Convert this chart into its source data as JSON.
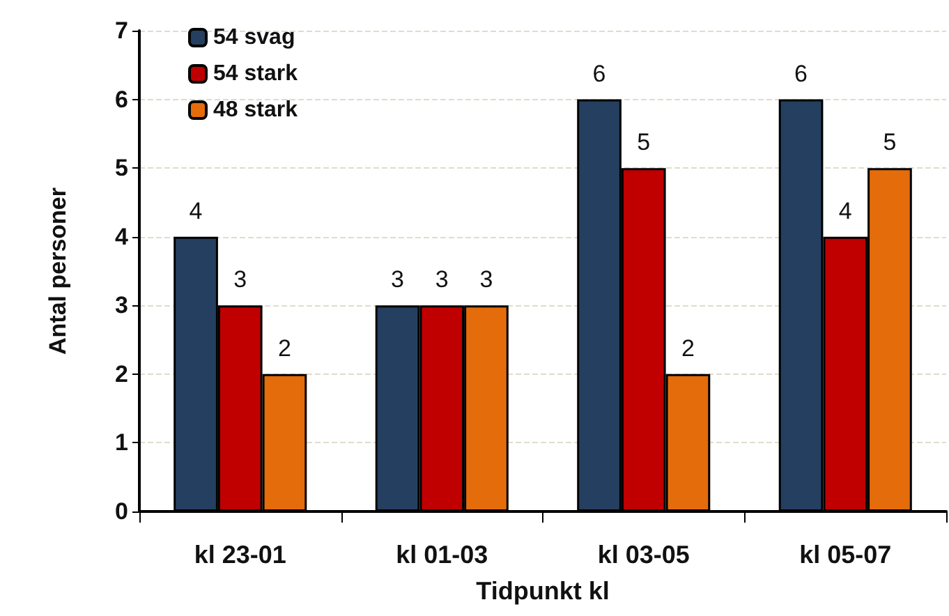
{
  "chart_data": {
    "type": "bar",
    "xlabel": "Tidpunkt kl",
    "ylabel": "Antal personer",
    "categories": [
      "kl 23-01",
      "kl 01-03",
      "kl 03-05",
      "kl 05-07"
    ],
    "series": [
      {
        "name": "54 svag",
        "color": "#243f60",
        "values": [
          4,
          3,
          6,
          6
        ]
      },
      {
        "name": "54 stark",
        "color": "#c00000",
        "values": [
          3,
          3,
          5,
          4
        ]
      },
      {
        "name": "48 stark",
        "color": "#e46c0a",
        "values": [
          2,
          3,
          2,
          5
        ]
      }
    ],
    "ylim": [
      0,
      7
    ],
    "yticks": [
      0,
      1,
      2,
      3,
      4,
      5,
      6,
      7
    ],
    "grid": "y",
    "legend": "top left",
    "data_labels": true
  }
}
